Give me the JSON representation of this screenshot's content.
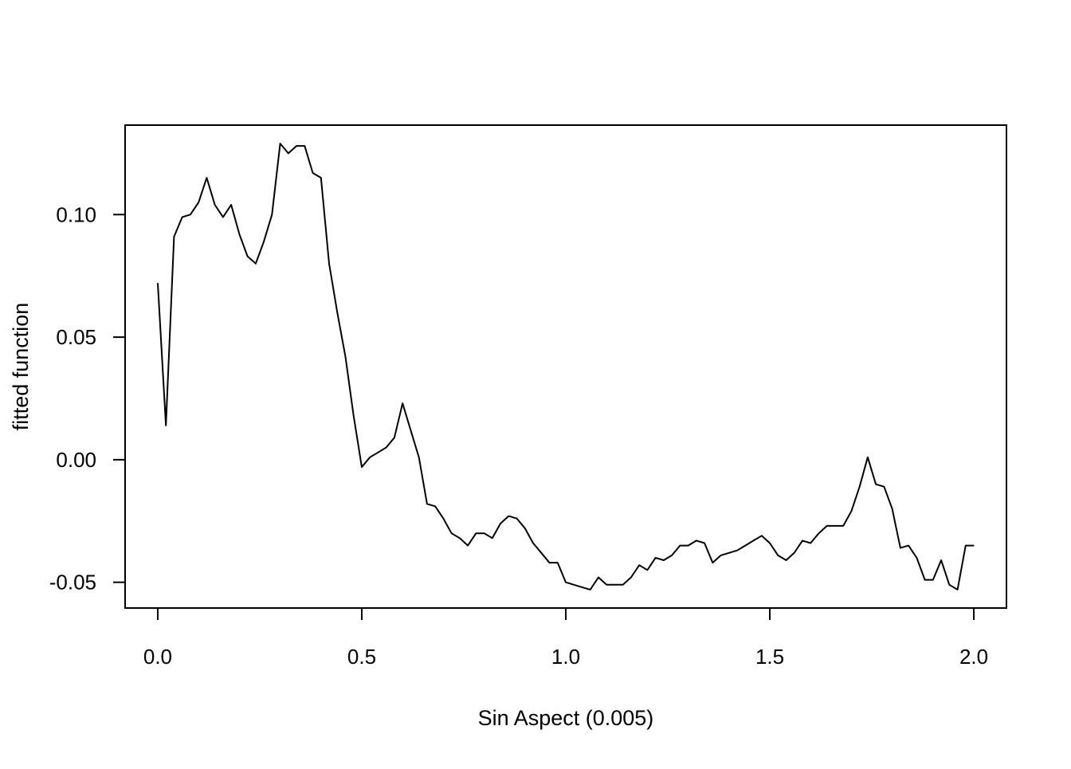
{
  "chart_data": {
    "type": "line",
    "xlabel": "Sin Aspect  (0.005)",
    "ylabel": "fitted function",
    "xlim": [
      -0.08,
      2.08
    ],
    "ylim": [
      -0.0605,
      0.1365
    ],
    "x_ticks": [
      {
        "value": 0.0,
        "label": "0.0"
      },
      {
        "value": 0.5,
        "label": "0.5"
      },
      {
        "value": 1.0,
        "label": "1.0"
      },
      {
        "value": 1.5,
        "label": "1.5"
      },
      {
        "value": 2.0,
        "label": "2.0"
      }
    ],
    "y_ticks": [
      {
        "value": -0.05,
        "label": "-0.05"
      },
      {
        "value": 0.0,
        "label": "0.00"
      },
      {
        "value": 0.05,
        "label": "0.05"
      },
      {
        "value": 0.1,
        "label": "0.10"
      }
    ],
    "grid": false,
    "color": "#000000",
    "series": [
      {
        "x": [
          0.0,
          0.02,
          0.04,
          0.06,
          0.08,
          0.1,
          0.12,
          0.14,
          0.16,
          0.18,
          0.2,
          0.22,
          0.24,
          0.26,
          0.28,
          0.3,
          0.32,
          0.34,
          0.36,
          0.38,
          0.4,
          0.42,
          0.44,
          0.46,
          0.48,
          0.5,
          0.52,
          0.54,
          0.56,
          0.58,
          0.6,
          0.62,
          0.64,
          0.66,
          0.68,
          0.7,
          0.72,
          0.74,
          0.76,
          0.78,
          0.8,
          0.82,
          0.84,
          0.86,
          0.88,
          0.9,
          0.92,
          0.94,
          0.96,
          0.98,
          1.0,
          1.02,
          1.04,
          1.06,
          1.08,
          1.1,
          1.12,
          1.14,
          1.16,
          1.18,
          1.2,
          1.22,
          1.24,
          1.26,
          1.28,
          1.3,
          1.32,
          1.34,
          1.36,
          1.38,
          1.4,
          1.42,
          1.44,
          1.46,
          1.48,
          1.5,
          1.52,
          1.54,
          1.56,
          1.58,
          1.6,
          1.62,
          1.64,
          1.66,
          1.68,
          1.7,
          1.72,
          1.74,
          1.76,
          1.78,
          1.8,
          1.82,
          1.84,
          1.86,
          1.88,
          1.9,
          1.92,
          1.94,
          1.96,
          1.98,
          2.0
        ],
        "y": [
          0.072,
          0.014,
          0.091,
          0.099,
          0.1,
          0.105,
          0.115,
          0.104,
          0.099,
          0.104,
          0.092,
          0.083,
          0.08,
          0.089,
          0.1,
          0.129,
          0.125,
          0.128,
          0.128,
          0.117,
          0.115,
          0.08,
          0.06,
          0.042,
          0.018,
          -0.003,
          0.001,
          0.003,
          0.005,
          0.009,
          0.023,
          0.012,
          0.001,
          -0.018,
          -0.019,
          -0.024,
          -0.03,
          -0.032,
          -0.035,
          -0.03,
          -0.03,
          -0.032,
          -0.026,
          -0.023,
          -0.024,
          -0.028,
          -0.034,
          -0.038,
          -0.042,
          -0.042,
          -0.05,
          -0.051,
          -0.052,
          -0.053,
          -0.048,
          -0.051,
          -0.051,
          -0.051,
          -0.048,
          -0.043,
          -0.045,
          -0.04,
          -0.041,
          -0.039,
          -0.035,
          -0.035,
          -0.033,
          -0.034,
          -0.042,
          -0.039,
          -0.038,
          -0.037,
          -0.035,
          -0.033,
          -0.031,
          -0.034,
          -0.039,
          -0.041,
          -0.038,
          -0.033,
          -0.034,
          -0.03,
          -0.027,
          -0.027,
          -0.027,
          -0.021,
          -0.011,
          0.001,
          -0.01,
          -0.011,
          -0.02,
          -0.036,
          -0.035,
          -0.04,
          -0.049,
          -0.049,
          -0.041,
          -0.051,
          -0.053,
          -0.035,
          -0.035
        ]
      }
    ]
  }
}
